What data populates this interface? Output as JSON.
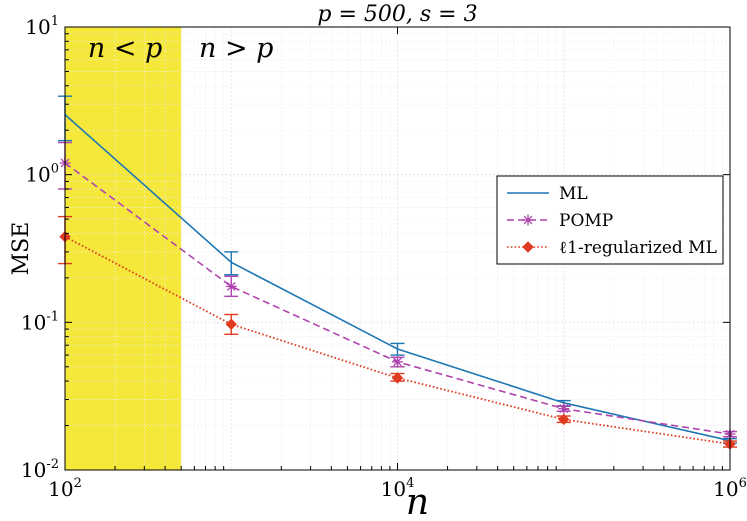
{
  "chart_data": {
    "type": "line",
    "title": "p = 500, s = 3",
    "xlabel": "n",
    "ylabel": "MSE",
    "xscale": "log",
    "yscale": "log",
    "xlim": [
      100,
      1000000
    ],
    "ylim": [
      0.01,
      10
    ],
    "grid": true,
    "x_ticks": [
      {
        "value": 100,
        "base": "10",
        "exp": "2"
      },
      {
        "value": 10000,
        "base": "10",
        "exp": "4"
      },
      {
        "value": 1000000,
        "base": "10",
        "exp": "6"
      }
    ],
    "y_ticks": [
      {
        "value": 0.01,
        "base": "10",
        "exp": "-2"
      },
      {
        "value": 0.1,
        "base": "10",
        "exp": "-1"
      },
      {
        "value": 1,
        "base": "10",
        "exp": "0"
      },
      {
        "value": 10,
        "base": "10",
        "exp": "1"
      }
    ],
    "regions": [
      {
        "label": "n < p",
        "x_range": [
          100,
          500
        ],
        "color": "#f5e83a"
      },
      {
        "label": "n > p",
        "x_range": [
          500,
          1000000
        ],
        "color": null
      }
    ],
    "x": [
      100,
      1000,
      10000,
      100000,
      1000000
    ],
    "series": [
      {
        "name": "ML",
        "values": [
          2.55,
          0.255,
          0.066,
          0.0285,
          0.0158
        ],
        "error_low": [
          1.7,
          0.21,
          0.06,
          0.027,
          0.0152
        ],
        "error_high": [
          3.4,
          0.3,
          0.072,
          0.0295,
          0.0163
        ],
        "color": "#1f77b4",
        "line_style": "solid",
        "marker": "none"
      },
      {
        "name": "POMP",
        "values": [
          1.2,
          0.175,
          0.054,
          0.026,
          0.0175
        ],
        "error_low": [
          0.8,
          0.15,
          0.05,
          0.025,
          0.0168
        ],
        "error_high": [
          1.65,
          0.205,
          0.058,
          0.0272,
          0.0182
        ],
        "color": "#b044b0",
        "line_style": "dashed",
        "marker": "asterisk"
      },
      {
        "name": "ℓ1-regularized ML",
        "values": [
          0.38,
          0.097,
          0.042,
          0.022,
          0.015
        ],
        "error_low": [
          0.25,
          0.083,
          0.04,
          0.021,
          0.0143
        ],
        "error_high": [
          0.52,
          0.113,
          0.045,
          0.0232,
          0.0157
        ],
        "color": "#e03a1e",
        "line_style": "dotted",
        "marker": "diamond"
      }
    ],
    "legend": {
      "position": "right",
      "entries": [
        "ML",
        "POMP",
        "ℓ1-regularized ML"
      ]
    }
  }
}
